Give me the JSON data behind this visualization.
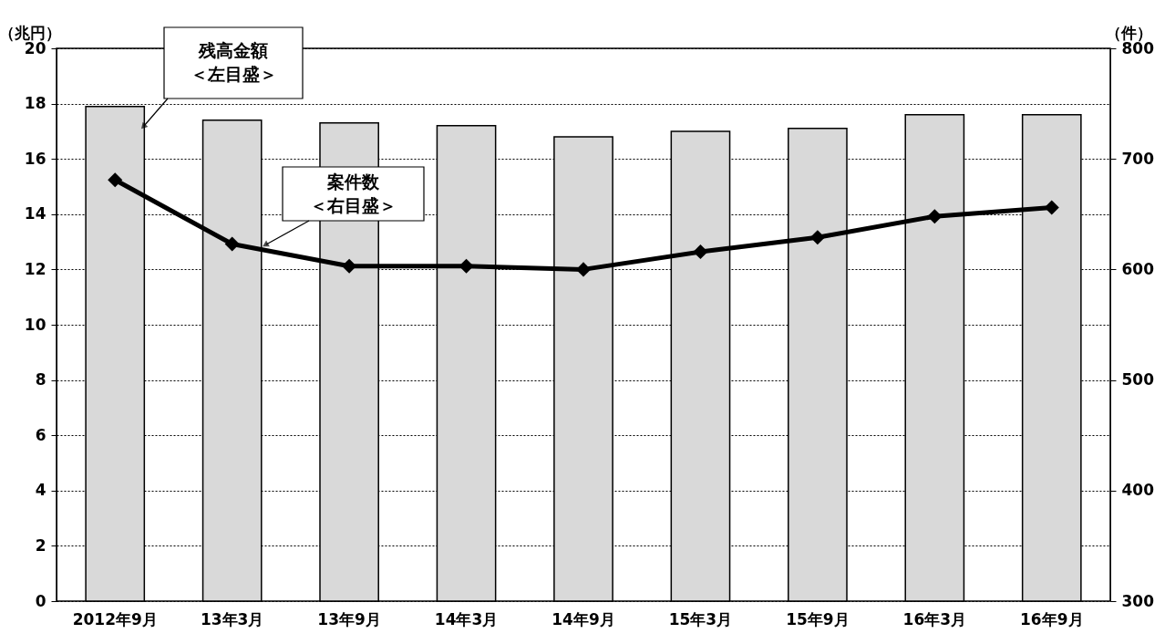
{
  "chart_data": {
    "type": "bar",
    "ylabel": "（兆円）",
    "y2label": "（件）",
    "categories": [
      "2012年9月",
      "13年3月",
      "13年9月",
      "14年3月",
      "14年9月",
      "15年3月",
      "15年9月",
      "16年3月",
      "16年9月"
    ],
    "series": [
      {
        "name": "残高金額＜左目盛＞",
        "color": "#d9d9d9",
        "values": [
          17.9,
          17.4,
          17.3,
          17.2,
          16.8,
          17.0,
          17.1,
          17.6,
          17.6
        ]
      },
      {
        "name": "案件数＜右目盛＞",
        "type": "line",
        "axis": "y2",
        "color": "#000000",
        "marker": "diamond",
        "values": [
          681,
          623,
          603,
          603,
          600,
          616,
          629,
          648,
          656
        ]
      }
    ],
    "ylim": [
      0,
      20
    ],
    "yticks": [
      0,
      2,
      4,
      6,
      8,
      10,
      12,
      14,
      16,
      18,
      20
    ],
    "y2lim": [
      300,
      800
    ],
    "y2ticks": [
      300,
      400,
      500,
      600,
      700,
      800
    ],
    "grid": "y"
  }
}
